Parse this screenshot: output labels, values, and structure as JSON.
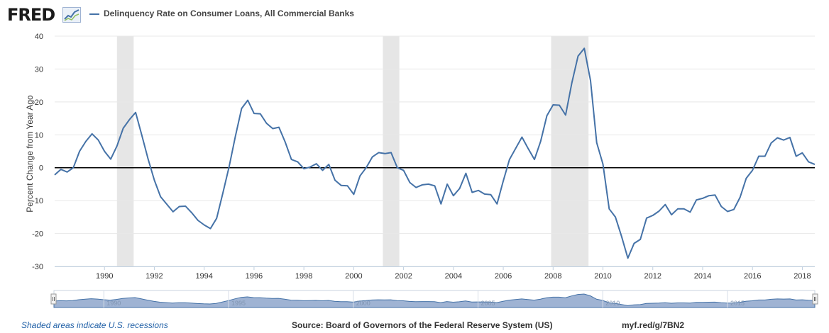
{
  "header": {
    "logo_text": "FRED",
    "series_title": "Delinquency Rate on Consumer Loans, All Commercial Banks"
  },
  "colors": {
    "line": "#4572a7",
    "recession": "#e6e6e6",
    "navigator_fill": "#9fb3d3"
  },
  "chart_data": {
    "type": "line",
    "title": "Delinquency Rate on Consumer Loans, All Commercial Banks",
    "xlabel": "",
    "ylabel": "Percent Change from Year Ago",
    "ylim": [
      -30,
      40
    ],
    "y_ticks": [
      "40",
      "30",
      "20",
      "10",
      "0",
      "-10",
      "-20",
      "-30"
    ],
    "x_range": [
      1988.0,
      2018.5
    ],
    "x_ticks": [
      "1990",
      "1992",
      "1994",
      "1996",
      "1998",
      "2000",
      "2002",
      "2004",
      "2006",
      "2008",
      "2010",
      "2012",
      "2014",
      "2016",
      "2018"
    ],
    "recessions": [
      [
        1990.5,
        1991.17
      ],
      [
        2001.17,
        2001.83
      ],
      [
        2007.92,
        2009.42
      ]
    ],
    "series": [
      {
        "name": "Delinquency Rate on Consumer Loans, All Commercial Banks",
        "x": [
          1988.0,
          1988.25,
          1988.5,
          1988.75,
          1989.0,
          1989.25,
          1989.5,
          1989.75,
          1990.0,
          1990.25,
          1990.5,
          1990.75,
          1991.0,
          1991.25,
          1991.5,
          1991.75,
          1992.0,
          1992.25,
          1992.5,
          1992.75,
          1993.0,
          1993.25,
          1993.5,
          1993.75,
          1994.0,
          1994.25,
          1994.5,
          1994.75,
          1995.0,
          1995.25,
          1995.5,
          1995.75,
          1996.0,
          1996.25,
          1996.5,
          1996.75,
          1997.0,
          1997.25,
          1997.5,
          1997.75,
          1998.0,
          1998.25,
          1998.5,
          1998.75,
          1999.0,
          1999.25,
          1999.5,
          1999.75,
          2000.0,
          2000.25,
          2000.5,
          2000.75,
          2001.0,
          2001.25,
          2001.5,
          2001.75,
          2002.0,
          2002.25,
          2002.5,
          2002.75,
          2003.0,
          2003.25,
          2003.5,
          2003.75,
          2004.0,
          2004.25,
          2004.5,
          2004.75,
          2005.0,
          2005.25,
          2005.5,
          2005.75,
          2006.0,
          2006.25,
          2006.5,
          2006.75,
          2007.0,
          2007.25,
          2007.5,
          2007.75,
          2008.0,
          2008.25,
          2008.5,
          2008.75,
          2009.0,
          2009.25,
          2009.5,
          2009.75,
          2010.0,
          2010.25,
          2010.5,
          2010.75,
          2011.0,
          2011.25,
          2011.5,
          2011.75,
          2012.0,
          2012.25,
          2012.5,
          2012.75,
          2013.0,
          2013.25,
          2013.5,
          2013.75,
          2014.0,
          2014.25,
          2014.5,
          2014.75,
          2015.0,
          2015.25,
          2015.5,
          2015.75,
          2016.0,
          2016.25,
          2016.5,
          2016.75,
          2017.0,
          2017.25,
          2017.5,
          2017.75,
          2018.0,
          2018.25,
          2018.5
        ],
        "values": [
          -2.2,
          -0.5,
          -1.3,
          0.0,
          5.0,
          8.0,
          10.3,
          8.4,
          5.0,
          2.6,
          6.6,
          12.0,
          14.6,
          16.8,
          9.8,
          2.6,
          -3.8,
          -8.8,
          -11.1,
          -13.4,
          -11.8,
          -11.7,
          -13.7,
          -16.0,
          -17.4,
          -18.5,
          -15.4,
          -7.7,
          0.3,
          9.5,
          18.0,
          20.5,
          16.5,
          16.4,
          13.5,
          11.9,
          12.3,
          7.8,
          2.5,
          1.8,
          -0.3,
          0.2,
          1.2,
          -0.8,
          1.0,
          -3.8,
          -5.4,
          -5.5,
          -8.1,
          -2.5,
          0.0,
          3.3,
          4.6,
          4.3,
          4.6,
          0.0,
          -0.8,
          -4.5,
          -6.0,
          -5.2,
          -5.0,
          -5.5,
          -11.0,
          -5.0,
          -8.5,
          -6.3,
          -1.7,
          -7.5,
          -6.9,
          -8.0,
          -8.2,
          -11.0,
          -4.0,
          2.5,
          5.9,
          9.3,
          5.8,
          2.5,
          8.0,
          15.8,
          19.1,
          19.0,
          16.0,
          25.7,
          33.9,
          36.3,
          26.5,
          7.6,
          1.1,
          -12.5,
          -15.0,
          -21.0,
          -27.5,
          -23.0,
          -21.8,
          -15.3,
          -14.5,
          -13.2,
          -11.2,
          -14.3,
          -12.5,
          -12.5,
          -13.5,
          -9.8,
          -9.3,
          -8.5,
          -8.3,
          -11.8,
          -13.3,
          -12.7,
          -9.0,
          -3.2,
          -0.8,
          3.5,
          3.5,
          7.5,
          9.1,
          8.4,
          9.2,
          3.5,
          4.5,
          1.8,
          1.0
        ]
      }
    ]
  },
  "navigator": {
    "year_labels": [
      "1990",
      "1995",
      "2000",
      "2005",
      "2010",
      "2015"
    ]
  },
  "footer": {
    "recession_note": "Shaded areas indicate U.S. recessions",
    "source": "Source: Board of Governors of the Federal Reserve System (US)",
    "short_url": "myf.red/g/7BN2"
  }
}
